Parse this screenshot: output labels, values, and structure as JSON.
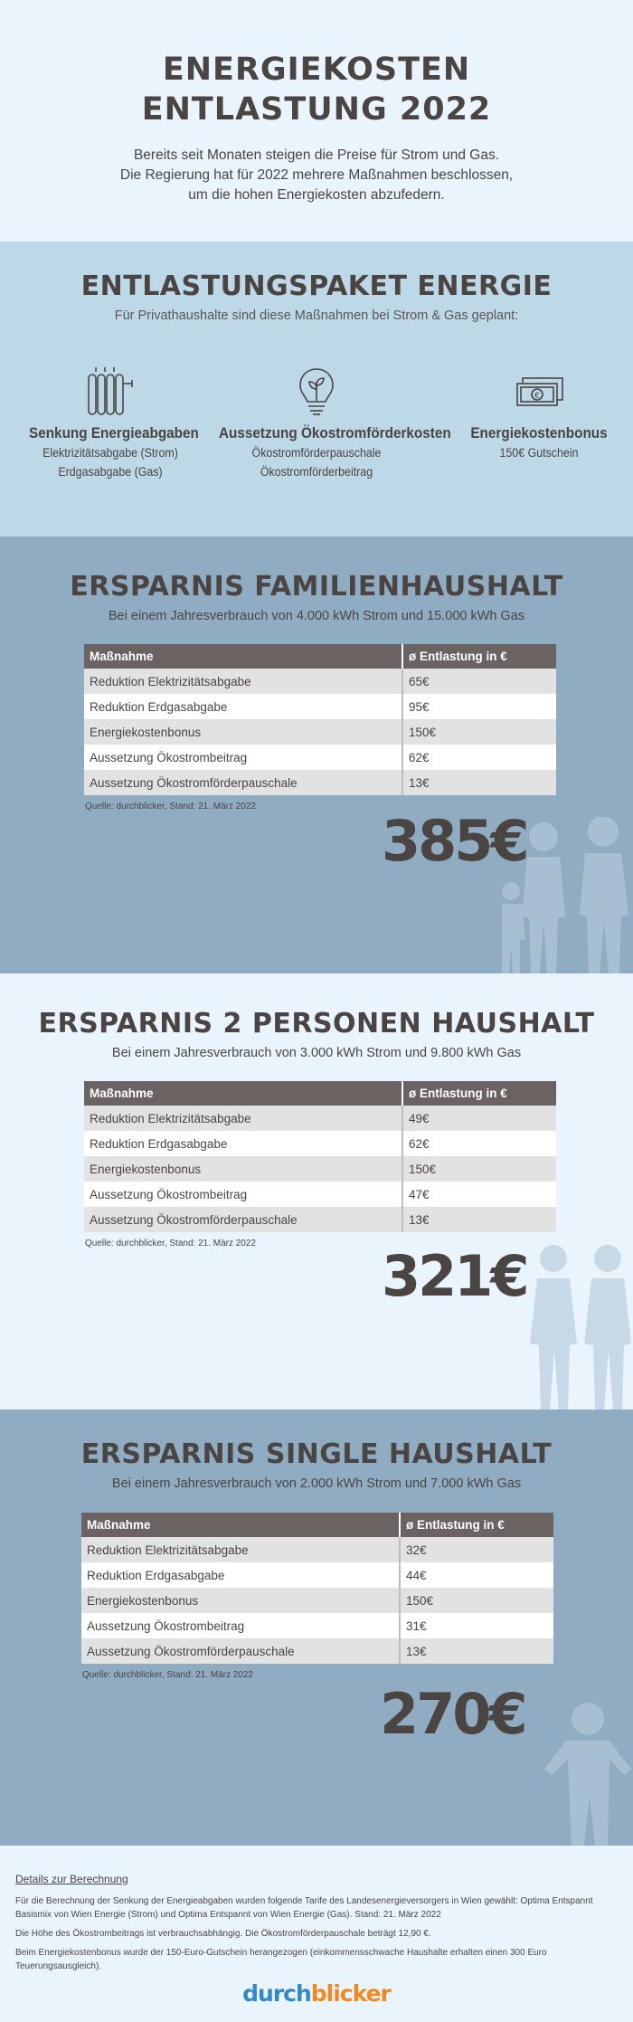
{
  "hero": {
    "title_line1": "ENERGIEKOSTEN",
    "title_line2": "ENTLASTUNG 2022",
    "intro_lines": [
      "Bereits seit Monaten steigen die Preise für Strom und Gas.",
      "Die Regierung hat für 2022 mehrere Maßnahmen beschlossen,",
      "um die hohen Energiekosten abzufedern."
    ]
  },
  "paket": {
    "title": "ENTLASTUNGSPAKET ENERGIE",
    "subtitle": "Für Privathaushalte sind diese Maßnahmen bei Strom & Gas geplant:",
    "measures": [
      {
        "icon": "radiator-icon",
        "title": "Senkung Energieabgaben",
        "lines": [
          "Elektrizitätsabgabe (Strom)",
          "Erdgasabgabe (Gas)"
        ]
      },
      {
        "icon": "lightbulb-leaf-icon",
        "title": "Aussetzung Ökostromförderkosten",
        "lines": [
          "Ökostromförderpauschale",
          "Ökostromförderbeitrag"
        ]
      },
      {
        "icon": "euro-banknotes-icon",
        "title": "Energiekostenbonus",
        "lines": [
          "150€ Gutschein"
        ]
      }
    ]
  },
  "table_headers": {
    "measure": "Maßnahme",
    "relief": "ø Entlastung in €"
  },
  "source": "Quelle: durchblicker, Stand: 21. März 2022",
  "households": [
    {
      "title": "ERSPARNIS FAMILIENHAUSHALT",
      "subtitle": "Bei einem Jahresverbrauch von 4.000 kWh Strom und 15.000 kWh Gas",
      "rows": [
        {
          "measure": "Reduktion Elektrizitätsabgabe",
          "value": "65€"
        },
        {
          "measure": "Reduktion Erdgasabgabe",
          "value": "95€"
        },
        {
          "measure": "Energiekostenbonus",
          "value": "150€"
        },
        {
          "measure": "Aussetzung Ökostrombeitrag",
          "value": "62€"
        },
        {
          "measure": "Aussetzung Ökostromförderpauschale",
          "value": "13€"
        }
      ],
      "total": "385€"
    },
    {
      "title": "ERSPARNIS 2 PERSONEN HAUSHALT",
      "subtitle": "Bei einem Jahresverbrauch von 3.000 kWh Strom und 9.800 kWh Gas",
      "rows": [
        {
          "measure": "Reduktion Elektrizitätsabgabe",
          "value": "49€"
        },
        {
          "measure": "Reduktion Erdgasabgabe",
          "value": "62€"
        },
        {
          "measure": "Energiekostenbonus",
          "value": "150€"
        },
        {
          "measure": "Aussetzung Ökostrombeitrag",
          "value": "47€"
        },
        {
          "measure": "Aussetzung Ökostromförderpauschale",
          "value": "13€"
        }
      ],
      "total": "321€"
    },
    {
      "title": "ERSPARNIS SINGLE HAUSHALT",
      "subtitle": "Bei einem Jahresverbrauch von 2.000 kWh Strom und 7.000 kWh Gas",
      "rows": [
        {
          "measure": "Reduktion Elektrizitätsabgabe",
          "value": "32€"
        },
        {
          "measure": "Reduktion Erdgasabgabe",
          "value": "44€"
        },
        {
          "measure": "Energiekostenbonus",
          "value": "150€"
        },
        {
          "measure": "Aussetzung Ökostrombeitrag",
          "value": "31€"
        },
        {
          "measure": "Aussetzung Ökostromförderpauschale",
          "value": "13€"
        }
      ],
      "total": "270€"
    }
  ],
  "footer": {
    "heading": "Details zur Berechnung",
    "paragraphs": [
      "Für die Berechnung der Senkung der Energieabgaben wurden folgende Tarife des Landesenergieversorgers in Wien gewählt: Optima Entspannt Basismix von Wien Energie (Strom) und Optima Entspannt von Wien Energie (Gas). Stand: 21. März 2022",
      "Die Höhe des Ökostrombeitrags ist verbrauchsabhängig. Die Ökostromförderpauschale beträgt 12,90 €.",
      "Beim Energiekostenbonus wurde der 150-Euro-Gutschein herangezogen (einkommensschwache Haushalte erhalten einen 300 Euro Teuerungsausgleich)."
    ],
    "logo_part1": "durch",
    "logo_part2": "blicker"
  },
  "colors": {
    "dark_text": "#4a4442",
    "light_bg": "#eaf4fc",
    "mid_blue_bg": "#bdd8e6",
    "steel_blue_bg": "#90acc2",
    "table_header": "#6a6361",
    "logo_blue": "#3189c9",
    "logo_orange": "#f08a1e"
  }
}
